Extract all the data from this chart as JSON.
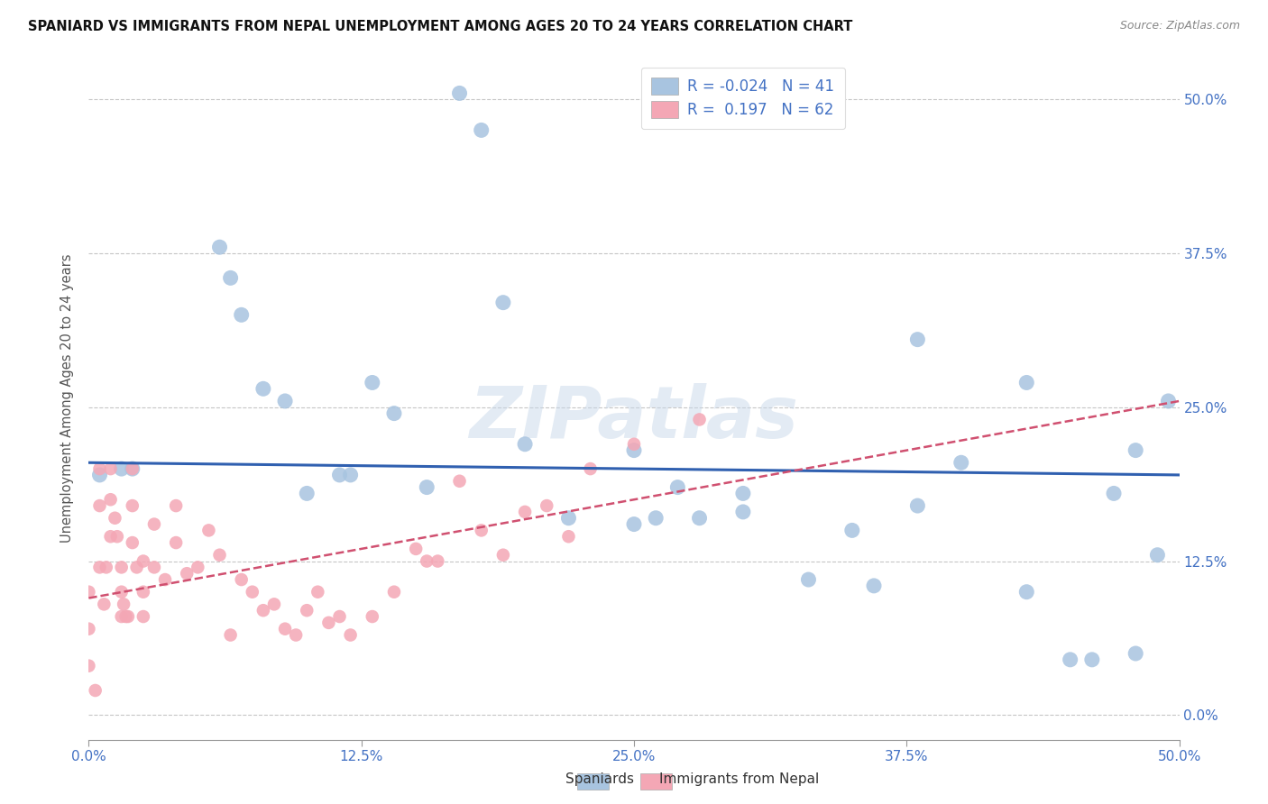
{
  "title": "SPANIARD VS IMMIGRANTS FROM NEPAL UNEMPLOYMENT AMONG AGES 20 TO 24 YEARS CORRELATION CHART",
  "source": "Source: ZipAtlas.com",
  "ylabel": "Unemployment Among Ages 20 to 24 years",
  "xlim": [
    0.0,
    0.5
  ],
  "ylim": [
    -0.02,
    0.535
  ],
  "xtick_labels": [
    "0.0%",
    "12.5%",
    "25.0%",
    "37.5%",
    "50.0%"
  ],
  "xtick_vals": [
    0.0,
    0.125,
    0.25,
    0.375,
    0.5
  ],
  "ytick_labels_right": [
    "50.0%",
    "37.5%",
    "25.0%",
    "12.5%",
    "0.0%"
  ],
  "ytick_vals": [
    0.5,
    0.375,
    0.25,
    0.125,
    0.0
  ],
  "spaniards_color": "#a8c4e0",
  "nepal_color": "#f4a7b5",
  "trend_spaniards_color": "#3060b0",
  "trend_nepal_color": "#d05070",
  "legend_line1": "R = -0.024   N = 41",
  "legend_line2": "R =  0.197   N = 62",
  "spaniards_x": [
    0.015,
    0.02,
    0.06,
    0.065,
    0.07,
    0.08,
    0.09,
    0.1,
    0.115,
    0.12,
    0.13,
    0.14,
    0.155,
    0.17,
    0.18,
    0.19,
    0.2,
    0.22,
    0.25,
    0.26,
    0.27,
    0.28,
    0.3,
    0.33,
    0.35,
    0.36,
    0.38,
    0.4,
    0.43,
    0.45,
    0.46,
    0.47,
    0.48,
    0.49,
    0.495,
    0.005,
    0.25,
    0.3,
    0.38,
    0.43,
    0.48
  ],
  "spaniards_y": [
    0.2,
    0.2,
    0.38,
    0.355,
    0.325,
    0.265,
    0.255,
    0.18,
    0.195,
    0.195,
    0.27,
    0.245,
    0.185,
    0.505,
    0.475,
    0.335,
    0.22,
    0.16,
    0.215,
    0.16,
    0.185,
    0.16,
    0.18,
    0.11,
    0.15,
    0.105,
    0.305,
    0.205,
    0.1,
    0.045,
    0.045,
    0.18,
    0.215,
    0.13,
    0.255,
    0.195,
    0.155,
    0.165,
    0.17,
    0.27,
    0.05
  ],
  "nepal_x": [
    0.0,
    0.0,
    0.0,
    0.003,
    0.005,
    0.005,
    0.005,
    0.007,
    0.008,
    0.01,
    0.01,
    0.01,
    0.012,
    0.013,
    0.015,
    0.015,
    0.015,
    0.016,
    0.017,
    0.018,
    0.02,
    0.02,
    0.02,
    0.022,
    0.025,
    0.025,
    0.025,
    0.03,
    0.03,
    0.035,
    0.04,
    0.04,
    0.045,
    0.05,
    0.055,
    0.06,
    0.065,
    0.07,
    0.075,
    0.08,
    0.085,
    0.09,
    0.095,
    0.1,
    0.105,
    0.11,
    0.115,
    0.12,
    0.13,
    0.14,
    0.15,
    0.155,
    0.16,
    0.17,
    0.18,
    0.19,
    0.2,
    0.21,
    0.22,
    0.23,
    0.25,
    0.28
  ],
  "nepal_y": [
    0.1,
    0.07,
    0.04,
    0.02,
    0.2,
    0.17,
    0.12,
    0.09,
    0.12,
    0.2,
    0.175,
    0.145,
    0.16,
    0.145,
    0.12,
    0.1,
    0.08,
    0.09,
    0.08,
    0.08,
    0.2,
    0.17,
    0.14,
    0.12,
    0.125,
    0.1,
    0.08,
    0.155,
    0.12,
    0.11,
    0.17,
    0.14,
    0.115,
    0.12,
    0.15,
    0.13,
    0.065,
    0.11,
    0.1,
    0.085,
    0.09,
    0.07,
    0.065,
    0.085,
    0.1,
    0.075,
    0.08,
    0.065,
    0.08,
    0.1,
    0.135,
    0.125,
    0.125,
    0.19,
    0.15,
    0.13,
    0.165,
    0.17,
    0.145,
    0.2,
    0.22,
    0.24
  ],
  "sp_trend_x0": 0.0,
  "sp_trend_y0": 0.205,
  "sp_trend_x1": 0.5,
  "sp_trend_y1": 0.195,
  "np_trend_x0": 0.0,
  "np_trend_y0": 0.095,
  "np_trend_x1": 0.5,
  "np_trend_y1": 0.255,
  "watermark": "ZIPatlas",
  "background_color": "#ffffff",
  "grid_color": "#c0c0c0"
}
